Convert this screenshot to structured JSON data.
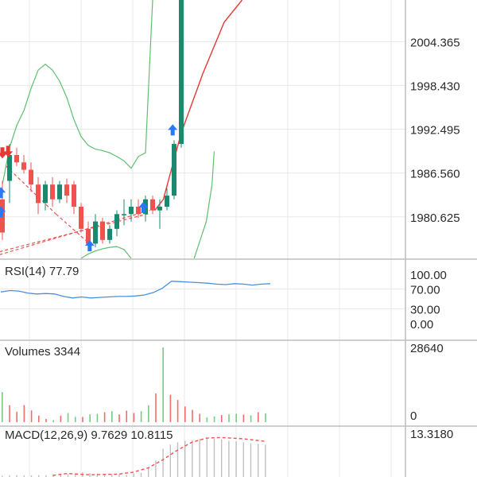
{
  "colors": {
    "up": "#1a8a6e",
    "down": "#ef5350",
    "band": "#5fbf6f",
    "sar": "#e53935",
    "rsi": "#4a90e2",
    "signal_up": "#2979ff",
    "signal_down": "#e53935",
    "grid": "#e8e8e8",
    "separator": "#bdbdbd"
  },
  "chart_data": [
    {
      "type": "candlestick",
      "panel": "price",
      "ylim": [
        1975.0,
        2010.0
      ],
      "y_ticks": [
        "2004.365",
        "1998.430",
        "1992.495",
        "1986.560",
        "1980.625"
      ],
      "tick_values": [
        2004.365,
        1998.43,
        1992.495,
        1986.56,
        1980.625
      ],
      "candles": [
        {
          "o": 1983.0,
          "h": 1985.5,
          "l": 1977.5,
          "c": 1978.5
        },
        {
          "o": 1985.5,
          "h": 1990.5,
          "l": 1982.5,
          "c": 1989.0
        },
        {
          "o": 1989.0,
          "h": 1990.0,
          "l": 1987.5,
          "c": 1988.0
        },
        {
          "o": 1988.0,
          "h": 1989.0,
          "l": 1986.5,
          "c": 1987.0
        },
        {
          "o": 1987.0,
          "h": 1988.0,
          "l": 1984.0,
          "c": 1985.0
        },
        {
          "o": 1985.0,
          "h": 1986.0,
          "l": 1981.0,
          "c": 1982.5
        },
        {
          "o": 1982.5,
          "h": 1985.5,
          "l": 1981.5,
          "c": 1985.0
        },
        {
          "o": 1985.0,
          "h": 1986.0,
          "l": 1982.0,
          "c": 1983.0
        },
        {
          "o": 1983.0,
          "h": 1985.5,
          "l": 1982.5,
          "c": 1985.0
        },
        {
          "o": 1985.0,
          "h": 1985.8,
          "l": 1982.5,
          "c": 1983.5
        },
        {
          "o": 1985.0,
          "h": 1985.5,
          "l": 1981.0,
          "c": 1982.0
        },
        {
          "o": 1982.0,
          "h": 1982.5,
          "l": 1978.5,
          "c": 1979.0
        },
        {
          "o": 1979.0,
          "h": 1980.0,
          "l": 1976.0,
          "c": 1977.0
        },
        {
          "o": 1977.0,
          "h": 1981.0,
          "l": 1976.5,
          "c": 1980.0
        },
        {
          "o": 1980.0,
          "h": 1980.5,
          "l": 1977.0,
          "c": 1977.5
        },
        {
          "o": 1977.5,
          "h": 1979.5,
          "l": 1977.0,
          "c": 1979.0
        },
        {
          "o": 1979.0,
          "h": 1981.5,
          "l": 1978.0,
          "c": 1981.0
        },
        {
          "o": 1981.0,
          "h": 1983.0,
          "l": 1979.5,
          "c": 1981.0
        },
        {
          "o": 1981.0,
          "h": 1983.0,
          "l": 1980.0,
          "c": 1982.0
        },
        {
          "o": 1982.0,
          "h": 1983.0,
          "l": 1980.5,
          "c": 1981.0
        },
        {
          "o": 1981.0,
          "h": 1983.5,
          "l": 1980.0,
          "c": 1983.0
        },
        {
          "o": 1983.0,
          "h": 1983.5,
          "l": 1981.0,
          "c": 1981.5
        },
        {
          "o": 1981.5,
          "h": 1983.0,
          "l": 1979.0,
          "c": 1982.0
        },
        {
          "o": 1982.0,
          "h": 1984.5,
          "l": 1981.5,
          "c": 1983.5
        },
        {
          "o": 1983.5,
          "h": 1991.0,
          "l": 1983.0,
          "c": 1990.5
        },
        {
          "o": 1990.5,
          "h": 2010.0,
          "l": 1990.0,
          "c": 2010.0
        }
      ],
      "bollinger_upper": [
        [
          0,
          1985
        ],
        [
          1,
          1990
        ],
        [
          2,
          1993
        ],
        [
          3,
          1995
        ],
        [
          4,
          1998
        ],
        [
          5,
          2000.5
        ],
        [
          6,
          2001.3
        ],
        [
          7,
          2000.5
        ],
        [
          8,
          1999
        ],
        [
          9,
          1996.8
        ],
        [
          10,
          1993.8
        ],
        [
          11,
          1991.5
        ],
        [
          12,
          1990.3
        ],
        [
          13,
          1989.8
        ],
        [
          14,
          1989.6
        ],
        [
          15,
          1989.3
        ],
        [
          16,
          1988.8
        ],
        [
          17,
          1988.2
        ],
        [
          18,
          1987.2
        ],
        [
          19,
          1988.8
        ],
        [
          20,
          1989.3
        ],
        [
          21,
          2010
        ]
      ],
      "bollinger_lower": [
        [
          11,
          1975
        ],
        [
          12,
          1975.6
        ],
        [
          13,
          1976
        ],
        [
          14,
          1976.3
        ],
        [
          15,
          1976.5
        ],
        [
          16,
          1976.6
        ],
        [
          17,
          1976.2
        ],
        [
          18,
          1975
        ]
      ],
      "sar_line": [
        [
          21.3,
          1981.5
        ],
        [
          22.5,
          1983
        ],
        [
          25,
          1992
        ],
        [
          28,
          2000
        ],
        [
          31,
          2007
        ],
        [
          33.5,
          2010
        ]
      ],
      "extra_band": [
        [
          26.8,
          1975
        ],
        [
          28.5,
          1980
        ],
        [
          29.3,
          1985
        ],
        [
          29.6,
          1989.5
        ]
      ],
      "dashed_segments": [
        [
          [
            -0.4,
            1975.5
          ],
          [
            20.6,
            1981.5
          ]
        ],
        [
          [
            -0.4,
            1975.9
          ],
          [
            20.6,
            1981.1
          ]
        ],
        [
          [
            0.5,
            1987.5
          ],
          [
            7.5,
            1981
          ]
        ],
        [
          [
            7.5,
            1981
          ],
          [
            12.4,
            1976.8
          ]
        ]
      ],
      "signals_up": [
        [
          -0.2,
          1983.8
        ],
        [
          -0.2,
          1981.2
        ],
        [
          12.2,
          1976.6
        ],
        [
          19.7,
          1981.8
        ],
        [
          23.8,
          1992.3
        ]
      ],
      "signals_down": [
        [
          0.0,
          1989.4
        ],
        [
          0.8,
          1989.6
        ]
      ]
    },
    {
      "type": "line",
      "panel": "rsi",
      "label": "RSI(14) 77.79",
      "ylim": [
        0,
        100
      ],
      "y_ticks": [
        "100.00",
        "70.00",
        "30.00",
        "0.00"
      ],
      "tick_values": [
        100,
        70,
        30,
        0
      ],
      "x": [
        0,
        1,
        2,
        3,
        4,
        5,
        6,
        7,
        8,
        9,
        10,
        11,
        12,
        13,
        14,
        15,
        16,
        17,
        18,
        19,
        20,
        21,
        22,
        23,
        24,
        25,
        26,
        27,
        28,
        29,
        30
      ],
      "values": [
        64,
        67,
        66,
        62,
        60,
        61,
        60,
        55,
        52,
        54,
        52,
        53,
        54,
        55,
        55,
        56,
        58,
        63,
        72,
        86,
        85,
        84,
        83,
        82,
        80,
        79,
        81,
        80,
        78,
        80,
        81
      ]
    },
    {
      "type": "bar",
      "panel": "volume",
      "label": "Volumes 3344",
      "ylim": [
        0,
        28640
      ],
      "y_ticks": [
        "28640",
        "0"
      ],
      "tick_values": [
        28640,
        0
      ],
      "values": [
        {
          "v": 11500,
          "up": true
        },
        {
          "v": 6500,
          "up": false
        },
        {
          "v": 4000,
          "up": false
        },
        {
          "v": 6500,
          "up": false
        },
        {
          "v": 4500,
          "up": false
        },
        {
          "v": 2500,
          "up": false
        },
        {
          "v": 1200,
          "up": false
        },
        {
          "v": 800,
          "up": true
        },
        {
          "v": 2500,
          "up": false
        },
        {
          "v": 3500,
          "up": true
        },
        {
          "v": 2000,
          "up": true
        },
        {
          "v": 2000,
          "up": false
        },
        {
          "v": 3000,
          "up": true
        },
        {
          "v": 3200,
          "up": true
        },
        {
          "v": 3800,
          "up": false
        },
        {
          "v": 4200,
          "up": true
        },
        {
          "v": 3000,
          "up": false
        },
        {
          "v": 4400,
          "up": false
        },
        {
          "v": 3500,
          "up": false
        },
        {
          "v": 4200,
          "up": true
        },
        {
          "v": 6500,
          "up": true
        },
        {
          "v": 11000,
          "up": false
        },
        {
          "v": 28640,
          "up": true
        },
        {
          "v": 10500,
          "up": false
        },
        {
          "v": 8500,
          "up": false
        },
        {
          "v": 6000,
          "up": false
        },
        {
          "v": 4700,
          "up": false
        },
        {
          "v": 3200,
          "up": false
        },
        {
          "v": 1800,
          "up": true
        },
        {
          "v": 2200,
          "up": true
        },
        {
          "v": 2700,
          "up": false
        },
        {
          "v": 3000,
          "up": true
        },
        {
          "v": 3200,
          "up": true
        },
        {
          "v": 2900,
          "up": false
        },
        {
          "v": 2600,
          "up": true
        },
        {
          "v": 3800,
          "up": false
        },
        {
          "v": 3344,
          "up": true
        }
      ]
    },
    {
      "type": "bar",
      "panel": "macd",
      "label": "MACD(12,26,9) 9.7629 10.8115",
      "ylim": [
        -0.3,
        13.318
      ],
      "y_ticks": [
        "13.3180"
      ],
      "tick_values": [
        13.318
      ],
      "histogram": [
        0.1,
        0.2,
        0.3,
        0.2,
        0.2,
        0.3,
        0.3,
        0.5,
        0.5,
        0.6,
        0.8,
        1.2,
        0.9,
        0.8,
        0.7,
        0.6,
        0.5,
        0.4,
        0.8,
        1.0,
        2.5,
        4.8,
        8.5,
        9.8,
        10.5,
        11.0,
        11.2,
        11.5,
        11.8,
        11.6,
        11.4,
        11.0,
        10.8,
        10.5,
        10.2,
        10.0,
        9.76
      ],
      "signal": [
        [
          7,
          0.2
        ],
        [
          9,
          0.8
        ],
        [
          12,
          0.4
        ],
        [
          16,
          0.6
        ],
        [
          18,
          1.2
        ],
        [
          20,
          2.5
        ],
        [
          22,
          5.0
        ],
        [
          24,
          8.0
        ],
        [
          26,
          10.5
        ],
        [
          28,
          11.8
        ],
        [
          30,
          12.0
        ],
        [
          33,
          11.6
        ],
        [
          36,
          10.81
        ]
      ]
    }
  ]
}
